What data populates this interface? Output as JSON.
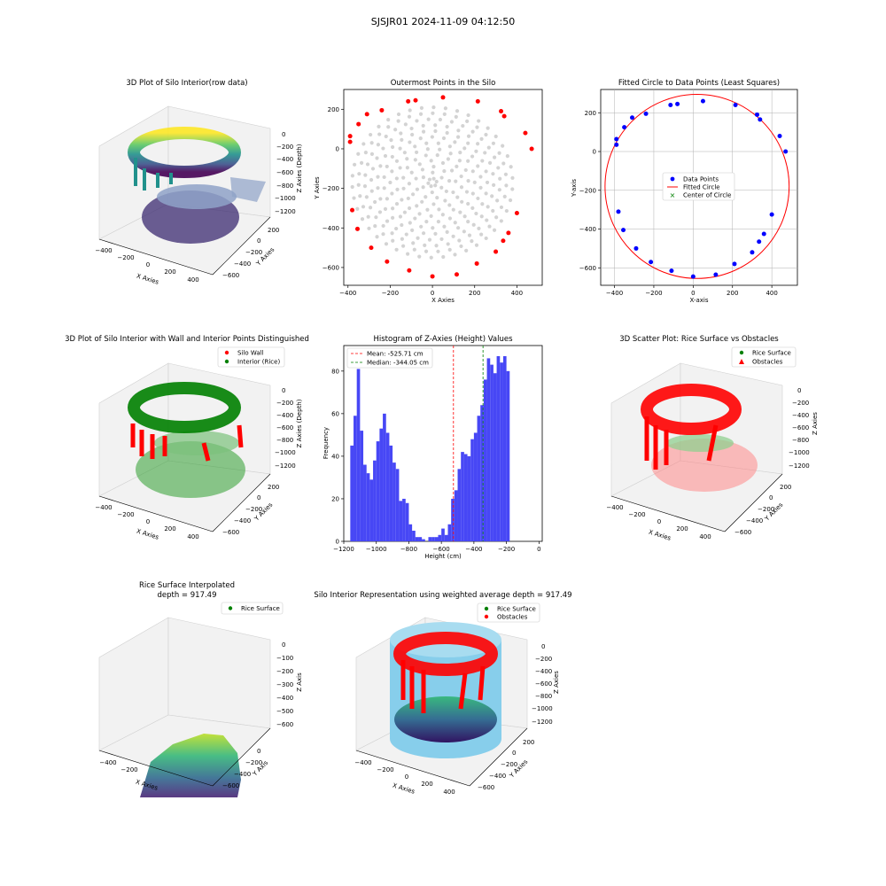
{
  "figure": {
    "title": "SJSJR01 2024-11-09 04:12:50"
  },
  "colors": {
    "wall": "#ff0000",
    "rice": "#008000",
    "points_grey": "#d3d3d3",
    "data_blue": "#0000ff",
    "hist_bar": "#4747f5",
    "silo_cyan": "#87ceeb",
    "mean_line": "#ff0000",
    "median_line": "#008000"
  },
  "chart_data": [
    {
      "id": "p1",
      "type": "scatter3d",
      "title": "3D Plot of Silo Interior(row data)",
      "xlabel": "X Axies",
      "ylabel": "Y Axies",
      "zlabel": "Z Axies (Depth)",
      "xticks": [
        "−400",
        "−200",
        "0",
        "200",
        "400"
      ],
      "yticks": [
        "200",
        "0",
        "−200",
        "−400",
        "−600"
      ],
      "zticks": [
        "0",
        "−200",
        "−400",
        "−600",
        "−800",
        "−1000",
        "−1200"
      ],
      "xlim": [
        -420,
        480
      ],
      "ylim": [
        -650,
        280
      ],
      "zlim": [
        -1250,
        0
      ],
      "colormap": "viridis"
    },
    {
      "id": "p2",
      "type": "scatter",
      "title": "Outermost Points in the Silo",
      "xlabel": "X Axies",
      "ylabel": "Y Axies",
      "xlim": [
        -420,
        520
      ],
      "ylim": [
        -690,
        300
      ],
      "xticks": [
        -400,
        -200,
        0,
        200,
        400
      ],
      "yticks": [
        200,
        0,
        -200,
        -400,
        -600
      ],
      "outermost_points": [
        [
          -390,
          64
        ],
        [
          -390,
          35
        ],
        [
          -350,
          125
        ],
        [
          -310,
          175
        ],
        [
          -240,
          195
        ],
        [
          -115,
          240
        ],
        [
          -80,
          245
        ],
        [
          -355,
          -405
        ],
        [
          -380,
          -310
        ],
        [
          -290,
          -500
        ],
        [
          -215,
          -570
        ],
        [
          -110,
          -615
        ],
        [
          0,
          -645
        ],
        [
          115,
          -635
        ],
        [
          210,
          -580
        ],
        [
          300,
          -520
        ],
        [
          335,
          -465
        ],
        [
          360,
          -425
        ],
        [
          400,
          -325
        ],
        [
          470,
          0
        ],
        [
          440,
          80
        ],
        [
          340,
          165
        ],
        [
          325,
          190
        ],
        [
          215,
          240
        ],
        [
          50,
          260
        ]
      ]
    },
    {
      "id": "p3",
      "type": "scatter+circle",
      "title": "Fitted Circle to Data Points (Least Squares)",
      "xlabel": "X-axis",
      "ylabel": "Y-axis",
      "xlim": [
        -470,
        530
      ],
      "ylim": [
        -690,
        320
      ],
      "xticks": [
        -400,
        -200,
        0,
        200,
        400
      ],
      "yticks": [
        200,
        0,
        -200,
        -400,
        -600
      ],
      "grid": true,
      "legend_position": "center",
      "legend": [
        "Data Points",
        "Fitted Circle",
        "Center of Circle"
      ],
      "circle": {
        "center": [
          20,
          -180
        ],
        "radius": 468
      },
      "data_points": [
        [
          -390,
          64
        ],
        [
          -390,
          35
        ],
        [
          -350,
          125
        ],
        [
          -310,
          175
        ],
        [
          -240,
          195
        ],
        [
          -115,
          240
        ],
        [
          -80,
          245
        ],
        [
          -355,
          -405
        ],
        [
          -380,
          -310
        ],
        [
          -290,
          -500
        ],
        [
          -215,
          -570
        ],
        [
          -110,
          -615
        ],
        [
          0,
          -645
        ],
        [
          115,
          -635
        ],
        [
          210,
          -580
        ],
        [
          300,
          -520
        ],
        [
          335,
          -465
        ],
        [
          360,
          -425
        ],
        [
          400,
          -325
        ],
        [
          470,
          0
        ],
        [
          440,
          80
        ],
        [
          340,
          165
        ],
        [
          325,
          190
        ],
        [
          215,
          240
        ],
        [
          50,
          260
        ]
      ]
    },
    {
      "id": "p4",
      "type": "scatter3d",
      "title": "3D Plot of Silo Interior with Wall and Interior Points Distinguished",
      "xlabel": "X Axies",
      "ylabel": "Y Axies",
      "zlabel": "Z Axies (Depth)",
      "xticks": [
        "−400",
        "−200",
        "0",
        "200",
        "400"
      ],
      "yticks": [
        "200",
        "0",
        "−200",
        "−400",
        "−600"
      ],
      "zticks": [
        "0",
        "−200",
        "−400",
        "−600",
        "−800",
        "−1000",
        "−1200"
      ],
      "legend": [
        "Silo Wall",
        "Interior (Rice)"
      ],
      "legend_position": "top-right"
    },
    {
      "id": "p5",
      "type": "histogram",
      "title": "Histogram of Z-Axies (Height) Values",
      "xlabel": "Height (cm)",
      "ylabel": "Frequency",
      "xlim": [
        -1200,
        20
      ],
      "ylim": [
        0,
        92
      ],
      "xticks": [
        -1200,
        -1000,
        -800,
        -600,
        -400,
        -200,
        0
      ],
      "yticks": [
        0,
        20,
        40,
        60,
        80
      ],
      "bin_width": 20,
      "bins_start": -1160,
      "counts": [
        45,
        59,
        81,
        52,
        36,
        32,
        29,
        38,
        47,
        53,
        60,
        51,
        45,
        37,
        34,
        19,
        20,
        18,
        8,
        5,
        2,
        2,
        1,
        0,
        2,
        2,
        2,
        3,
        6,
        3,
        8,
        20,
        24,
        34,
        42,
        41,
        40,
        48,
        51,
        59,
        64,
        76,
        86,
        83,
        79,
        87,
        84,
        87,
        80
      ],
      "mean": -525.71,
      "median": -344.05,
      "legend": [
        "Mean: -525.71 cm",
        "Median: -344.05 cm"
      ],
      "legend_position": "top-left"
    },
    {
      "id": "p6",
      "type": "scatter3d",
      "title": "3D Scatter Plot: Rice Surface vs Obstacles",
      "xlabel": "X Axies",
      "ylabel": "Y Axies",
      "zlabel": "Z Axies",
      "xticks": [
        "−400",
        "−200",
        "0",
        "200",
        "400"
      ],
      "yticks": [
        "200",
        "0",
        "−200",
        "−400",
        "−600"
      ],
      "zticks": [
        "0",
        "−200",
        "−400",
        "−600",
        "−800",
        "−1000",
        "−1200"
      ],
      "legend": [
        "Rice Surface",
        "Obstacles"
      ],
      "legend_position": "top-right"
    },
    {
      "id": "p7",
      "type": "surface3d",
      "title": "Rice Surface Interpolated",
      "subtitle": "depth = 917.49",
      "xlabel": "X Axies",
      "ylabel": "Y Axis",
      "zlabel": "Z Axis",
      "xticks": [
        "−400",
        "−200"
      ],
      "yticks": [
        "0",
        "−200",
        "−400",
        "−600"
      ],
      "zticks": [
        "0",
        "−100",
        "−200",
        "−300",
        "−400",
        "−500",
        "−600"
      ],
      "legend": [
        "Rice Surface"
      ],
      "legend_position": "top-right"
    },
    {
      "id": "p8",
      "type": "surface3d",
      "title": "Silo Interior Representation using weighted average depth = 917.49",
      "xlabel": "X Axies",
      "ylabel": "Y Axies",
      "zlabel": "Z Axies",
      "xticks": [
        "−400",
        "−200",
        "0",
        "200",
        "400"
      ],
      "yticks": [
        "200",
        "0",
        "−200",
        "−400",
        "−600"
      ],
      "zticks": [
        "0",
        "−200",
        "−400",
        "−600",
        "−800",
        "−1000",
        "−1200"
      ],
      "legend": [
        "Rice Surface",
        "Obstacles"
      ],
      "legend_position": "top-center"
    }
  ]
}
